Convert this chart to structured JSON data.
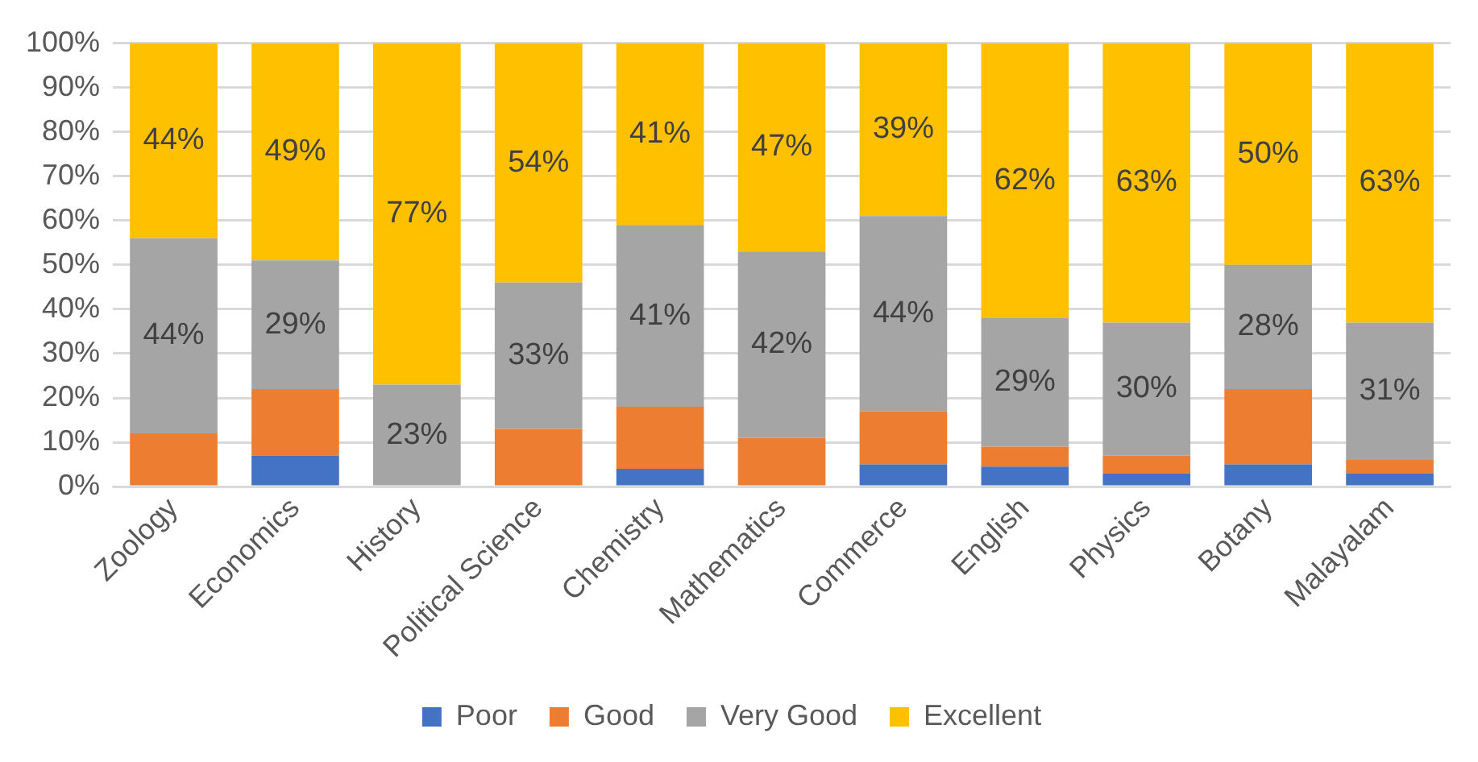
{
  "chart_data": {
    "type": "bar",
    "stacked": true,
    "categories": [
      "Zoology",
      "Economics",
      "History",
      "Political Science",
      "Chemistry",
      "Mathematics",
      "Commerce",
      "English",
      "Physics",
      "Botany",
      "Malayalam"
    ],
    "series": [
      {
        "name": "Poor",
        "color": "#4472c4",
        "values": [
          0,
          7,
          0,
          0,
          4,
          0,
          5,
          4.5,
          3,
          5,
          3
        ]
      },
      {
        "name": "Good",
        "color": "#ed7d31",
        "values": [
          12,
          15,
          0,
          13,
          14,
          11,
          12,
          4.5,
          4,
          17,
          3
        ]
      },
      {
        "name": "Very Good",
        "color": "#a5a5a5",
        "values": [
          44,
          29,
          23,
          33,
          41,
          42,
          44,
          29,
          30,
          28,
          31
        ],
        "value_labels": [
          "44%",
          "29%",
          "23%",
          "33%",
          "41%",
          "42%",
          "44%",
          "29%",
          "30%",
          "28%",
          "31%"
        ]
      },
      {
        "name": "Excellent",
        "color": "#ffc000",
        "values": [
          44,
          49,
          77,
          54,
          41,
          47,
          39,
          62,
          63,
          50,
          63
        ],
        "value_labels": [
          "44%",
          "49%",
          "77%",
          "54%",
          "41%",
          "47%",
          "39%",
          "62%",
          "63%",
          "50%",
          "63%"
        ]
      }
    ],
    "ylim": [
      0,
      100
    ],
    "yticks": [
      {
        "value": 0,
        "label": "0%"
      },
      {
        "value": 10,
        "label": "10%"
      },
      {
        "value": 20,
        "label": "20%"
      },
      {
        "value": 30,
        "label": "30%"
      },
      {
        "value": 40,
        "label": "40%"
      },
      {
        "value": 50,
        "label": "50%"
      },
      {
        "value": 60,
        "label": "60%"
      },
      {
        "value": 70,
        "label": "70%"
      },
      {
        "value": 80,
        "label": "80%"
      },
      {
        "value": 90,
        "label": "90%"
      },
      {
        "value": 100,
        "label": "100%"
      }
    ],
    "grid": "y",
    "legend": "bottom"
  }
}
